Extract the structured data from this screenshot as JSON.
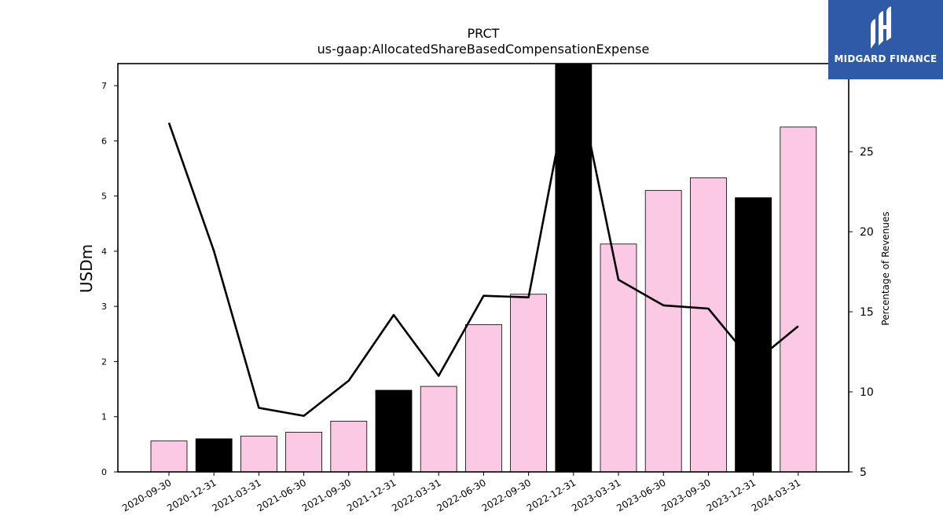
{
  "chart_data": {
    "type": "bar",
    "title": "PRCT",
    "subtitle": "us-gaap:AllocatedShareBasedCompensationExpense",
    "ylabel": "USDm",
    "y2label": "Percentage of Revenues",
    "ylim": [
      0,
      7.4
    ],
    "y2lim": [
      5,
      30.5
    ],
    "yticks": [
      0,
      1,
      2,
      3,
      4,
      5,
      6,
      7
    ],
    "y2ticks": [
      5,
      10,
      15,
      20,
      25
    ],
    "categories": [
      "2020-09-30",
      "2020-12-31",
      "2021-03-31",
      "2021-06-30",
      "2021-09-30",
      "2021-12-31",
      "2022-03-31",
      "2022-06-30",
      "2022-09-30",
      "2022-12-31",
      "2023-03-31",
      "2023-06-30",
      "2023-09-30",
      "2023-12-31",
      "2024-03-31"
    ],
    "series": [
      {
        "kind": "bar",
        "axis": "left",
        "values": [
          0.56,
          0.6,
          0.65,
          0.72,
          0.92,
          1.48,
          1.55,
          2.67,
          3.22,
          7.45,
          4.13,
          5.1,
          5.33,
          4.97,
          6.25
        ],
        "colors": [
          "#fbc9e4",
          "#000000",
          "#fbc9e4",
          "#fbc9e4",
          "#fbc9e4",
          "#000000",
          "#fbc9e4",
          "#fbc9e4",
          "#fbc9e4",
          "#000000",
          "#fbc9e4",
          "#fbc9e4",
          "#fbc9e4",
          "#000000",
          "#fbc9e4"
        ]
      },
      {
        "kind": "line",
        "axis": "right",
        "color": "#000000",
        "values": [
          26.8,
          18.8,
          9.0,
          8.5,
          10.7,
          14.8,
          11.0,
          16.0,
          15.9,
          30.6,
          17.0,
          15.4,
          15.2,
          11.8,
          14.1
        ]
      }
    ],
    "grid": false,
    "legend": "none"
  },
  "logo": {
    "text": "MIDGARD FINANCE",
    "color": "#2f5aa8"
  }
}
